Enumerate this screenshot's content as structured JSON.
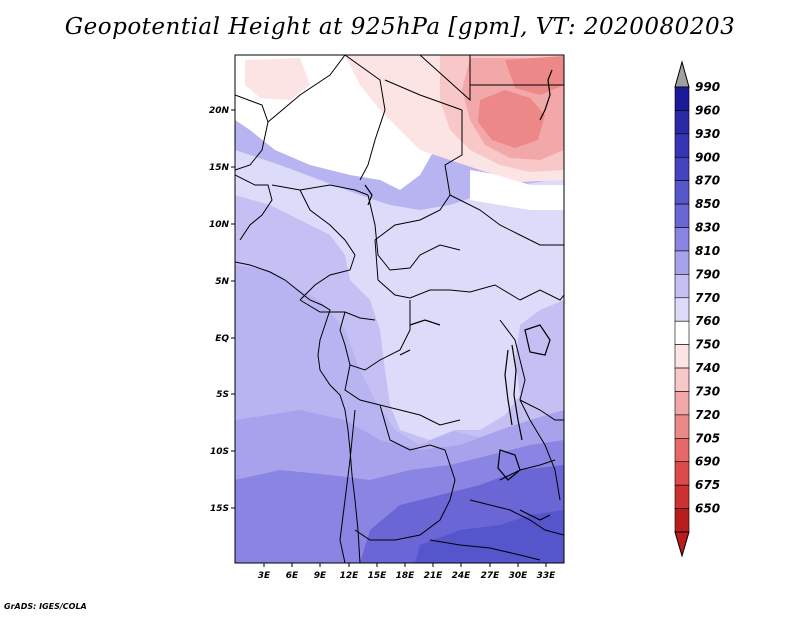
{
  "title": "Geopotential Height at 925hPa [gpm], VT: 2020080203",
  "credit": "GrADS: IGES/COLA",
  "axes": {
    "lat_labels": [
      "20N",
      "15N",
      "10N",
      "5N",
      "EQ",
      "5S",
      "10S",
      "15S"
    ],
    "lon_labels": [
      "3E",
      "6E",
      "9E",
      "12E",
      "15E",
      "18E",
      "21E",
      "24E",
      "27E",
      "30E",
      "33E"
    ]
  },
  "colorbar": {
    "levels": [
      "990",
      "960",
      "930",
      "900",
      "870",
      "850",
      "830",
      "810",
      "790",
      "770",
      "760",
      "750",
      "740",
      "730",
      "720",
      "705",
      "690",
      "675",
      "650"
    ],
    "colors": [
      "#1a1a9a",
      "#2a2aa8",
      "#3636b4",
      "#4444c0",
      "#5555cc",
      "#6a66d6",
      "#8a84e2",
      "#a8a2ec",
      "#c4c0f4",
      "#dcdcfa",
      "#ffffff",
      "#fde4e4",
      "#f8c8c8",
      "#f2a8a8",
      "#ec8888",
      "#e66868",
      "#dc4a4a",
      "#cc3030",
      "#b81c1c"
    ],
    "top_arrow_color": "#a0a0a0",
    "bottom_arrow_color": "#b81c1c"
  }
}
